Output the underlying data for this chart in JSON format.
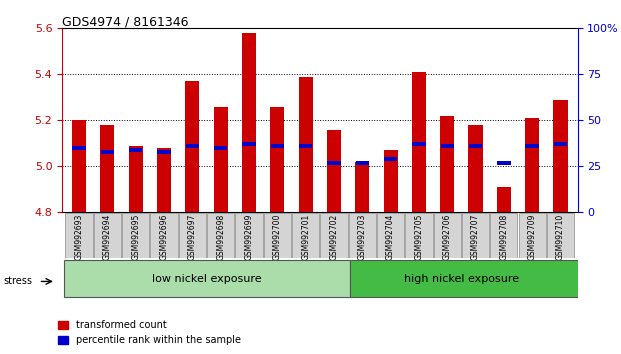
{
  "title": "GDS4974 / 8161346",
  "samples": [
    "GSM992693",
    "GSM992694",
    "GSM992695",
    "GSM992696",
    "GSM992697",
    "GSM992698",
    "GSM992699",
    "GSM992700",
    "GSM992701",
    "GSM992702",
    "GSM992703",
    "GSM992704",
    "GSM992705",
    "GSM992706",
    "GSM992707",
    "GSM992708",
    "GSM992709",
    "GSM992710"
  ],
  "transformed_count": [
    5.2,
    5.18,
    5.09,
    5.08,
    5.37,
    5.26,
    5.58,
    5.26,
    5.39,
    5.16,
    5.02,
    5.07,
    5.41,
    5.22,
    5.18,
    4.91,
    5.21,
    5.29
  ],
  "percentile_rank": [
    35,
    33,
    34,
    33,
    36,
    35,
    37,
    36,
    36,
    27,
    27,
    29,
    37,
    36,
    36,
    27,
    36,
    37
  ],
  "ylim_left": [
    4.8,
    5.6
  ],
  "ylim_right": [
    0,
    100
  ],
  "yticks_left": [
    4.8,
    5.0,
    5.2,
    5.4,
    5.6
  ],
  "yticks_right": [
    0,
    25,
    50,
    75,
    100
  ],
  "bar_color_red": "#cc0000",
  "bar_color_blue": "#0000cc",
  "low_nickel_label": "low nickel exposure",
  "high_nickel_label": "high nickel exposure",
  "low_nickel_count": 10,
  "stress_label": "stress",
  "legend_red": "transformed count",
  "legend_blue": "percentile rank within the sample",
  "title_color": "#000000",
  "left_axis_color": "#cc0000",
  "right_axis_color": "#0000cc",
  "bar_width": 0.5,
  "base_value": 4.8,
  "low_green": "#aaddaa",
  "high_green": "#44bb44"
}
